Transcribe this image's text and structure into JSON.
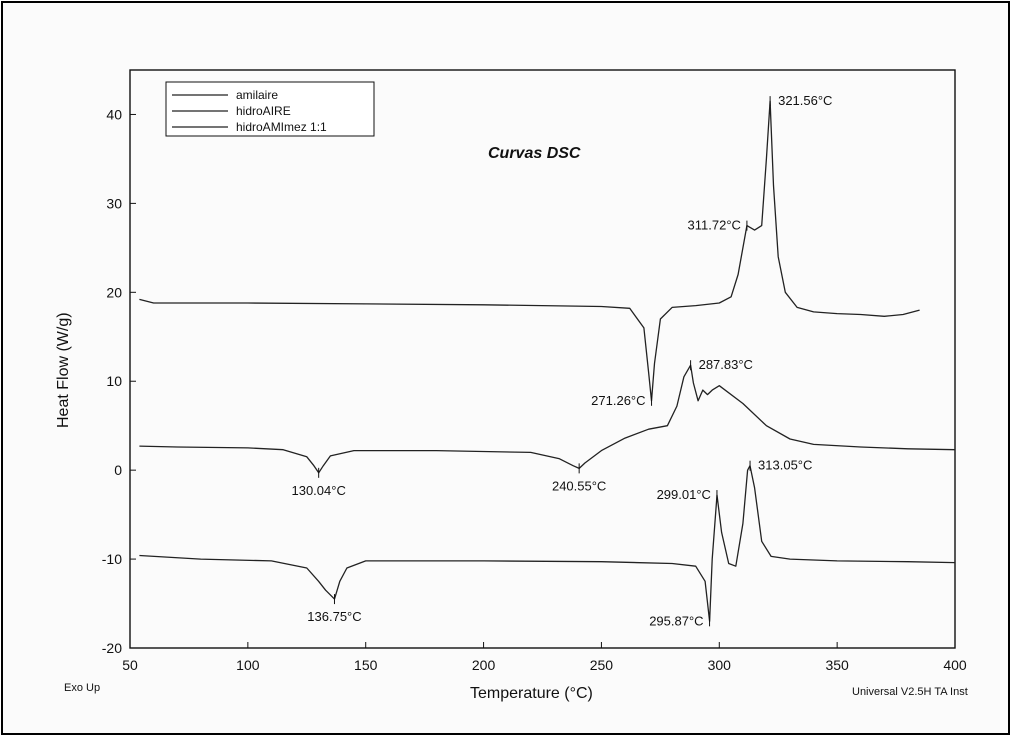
{
  "chart_data": {
    "type": "line",
    "title": "Curvas DSC",
    "xlabel": "Temperature (°C)",
    "ylabel": "Heat Flow (W/g)",
    "xlim": [
      50,
      400
    ],
    "ylim": [
      -20,
      45
    ],
    "xticks": [
      "50",
      "100",
      "150",
      "200",
      "250",
      "300",
      "350",
      "400"
    ],
    "yticks": [
      "-20",
      "-10",
      "0",
      "10",
      "20",
      "30",
      "40"
    ],
    "footer_left": "Exo Up",
    "footer_right": "Universal V2.5H TA Inst",
    "legend_position": "top-left",
    "grid": false,
    "line_color": "#222222",
    "series": [
      {
        "name": "amilaire",
        "x": [
          54,
          60,
          100,
          150,
          200,
          250,
          262,
          268,
          270,
          271.26,
          272.5,
          275,
          280,
          290,
          300,
          305,
          308,
          311.72,
          315,
          318,
          320,
          321.56,
          323,
          325,
          328,
          333,
          340,
          350,
          360,
          370,
          378,
          385
        ],
        "y": [
          19.2,
          18.8,
          18.8,
          18.7,
          18.6,
          18.4,
          18.2,
          16,
          11,
          7.8,
          12,
          17,
          18.3,
          18.5,
          18.8,
          19.5,
          22,
          27.5,
          27,
          27.5,
          35,
          41.5,
          32,
          24,
          20,
          18.3,
          17.8,
          17.6,
          17.5,
          17.3,
          17.5,
          18
        ]
      },
      {
        "name": "hidroAIRE",
        "x": [
          54,
          70,
          100,
          115,
          125,
          128,
          130.04,
          132,
          135,
          145,
          180,
          220,
          232,
          238,
          240.55,
          243,
          250,
          260,
          270,
          278,
          282,
          285,
          287.83,
          289,
          291,
          293,
          295,
          297,
          300,
          310,
          320,
          330,
          340,
          360,
          380,
          400
        ],
        "y": [
          2.7,
          2.6,
          2.5,
          2.3,
          1.5,
          0.5,
          -0.3,
          0.5,
          1.6,
          2.2,
          2.2,
          2.0,
          1.3,
          0.5,
          0.2,
          0.8,
          2.2,
          3.6,
          4.6,
          5.0,
          7.2,
          10.5,
          11.8,
          9.8,
          7.8,
          9.0,
          8.5,
          9.0,
          9.5,
          7.5,
          5.0,
          3.5,
          2.9,
          2.6,
          2.4,
          2.3
        ]
      },
      {
        "name": "hidroAMImez 1:1",
        "x": [
          54,
          80,
          110,
          125,
          130,
          133,
          136.75,
          139,
          142,
          150,
          200,
          250,
          280,
          290,
          294,
          295.87,
          297,
          299.01,
          301,
          304,
          307,
          310,
          312,
          313.05,
          315,
          318,
          322,
          330,
          350,
          380,
          400
        ],
        "y": [
          -9.6,
          -10.0,
          -10.2,
          -11.0,
          -12.5,
          -13.5,
          -14.5,
          -12.5,
          -11.0,
          -10.2,
          -10.2,
          -10.3,
          -10.5,
          -10.8,
          -12.5,
          -17.0,
          -10.0,
          -2.8,
          -7.0,
          -10.5,
          -10.8,
          -6.0,
          0.0,
          0.5,
          -2.0,
          -8.0,
          -9.7,
          -10.0,
          -10.2,
          -10.3,
          -10.4
        ]
      }
    ],
    "annotations": [
      {
        "text": "321.56°C",
        "x": 321.56,
        "y": 41.5,
        "anchor": "right"
      },
      {
        "text": "311.72°C",
        "x": 311.72,
        "y": 27.5,
        "anchor": "left"
      },
      {
        "text": "271.26°C",
        "x": 271.26,
        "y": 7.8,
        "anchor": "left"
      },
      {
        "text": "287.83°C",
        "x": 287.83,
        "y": 11.8,
        "anchor": "right"
      },
      {
        "text": "130.04°C",
        "x": 130.04,
        "y": -0.3,
        "anchor": "below"
      },
      {
        "text": "240.55°C",
        "x": 240.55,
        "y": 0.2,
        "anchor": "below"
      },
      {
        "text": "299.01°C",
        "x": 299.01,
        "y": -2.8,
        "anchor": "left"
      },
      {
        "text": "313.05°C",
        "x": 313.05,
        "y": 0.5,
        "anchor": "right"
      },
      {
        "text": "136.75°C",
        "x": 136.75,
        "y": -14.5,
        "anchor": "below"
      },
      {
        "text": "295.87°C",
        "x": 295.87,
        "y": -17.0,
        "anchor": "left"
      }
    ]
  }
}
